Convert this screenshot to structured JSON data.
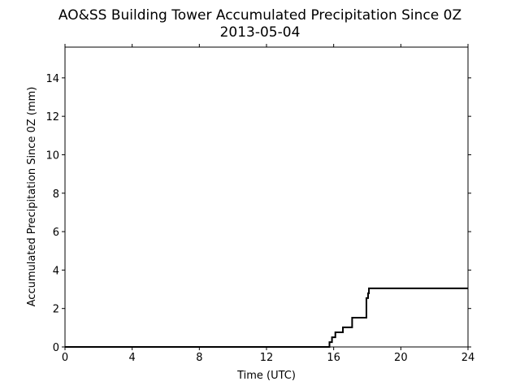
{
  "chart_data": {
    "type": "line",
    "title": "AO&SS Building Tower Accumulated Precipitation Since 0Z",
    "subtitle": "2013-05-04",
    "xlabel": "Time (UTC)",
    "ylabel": "Accumulated Precipitation Since 0Z (mm)",
    "xlim": [
      0,
      24
    ],
    "ylim": [
      0,
      15.6
    ],
    "xticks": [
      0,
      4,
      8,
      12,
      16,
      20,
      24
    ],
    "yticks": [
      0,
      2,
      4,
      6,
      8,
      10,
      12,
      14
    ],
    "grid": false,
    "line_color": "#000000",
    "series": [
      {
        "step": true,
        "x": [
          0,
          15.7,
          15.75,
          15.85,
          15.9,
          16.1,
          16.5,
          16.55,
          17.0,
          17.1,
          17.9,
          17.95,
          18.05,
          18.1,
          24
        ],
        "y": [
          0,
          0,
          0.25,
          0.25,
          0.5,
          0.76,
          0.76,
          1.02,
          1.02,
          1.52,
          1.52,
          2.54,
          2.79,
          3.05,
          3.05
        ]
      }
    ]
  }
}
